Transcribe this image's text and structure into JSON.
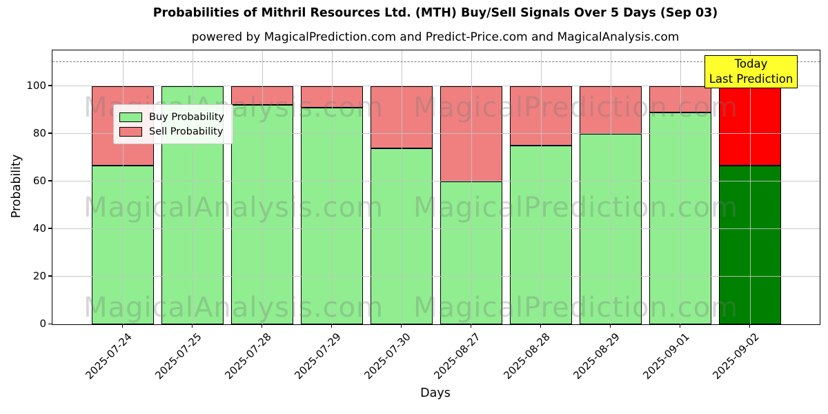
{
  "title": "Probabilities of Mithril Resources Ltd. (MTH) Buy/Sell Signals Over 5 Days (Sep 03)",
  "subtitle": "powered by MagicalPrediction.com and Predict-Price.com and MagicalAnalysis.com",
  "legend": {
    "items": [
      {
        "label": "Buy Probability",
        "color": "#90EE90"
      },
      {
        "label": "Sell Probability",
        "color": "#F08080"
      }
    ]
  },
  "annotation": {
    "line1": "Today",
    "line2": "Last Prediction",
    "bg_color": "#FFFF2E",
    "border_color": "#000000"
  },
  "watermarks": {
    "left_text": "MagicalAnalysis.com",
    "right_text": "MagicalPrediction.com"
  },
  "chart_data": {
    "type": "bar",
    "stacked": true,
    "title": "Probabilities of Mithril Resources Ltd. (MTH) Buy/Sell Signals Over 5 Days (Sep 03)",
    "xlabel": "Days",
    "ylabel": "Probability",
    "categories": [
      "2025-07-24",
      "2025-07-25",
      "2025-07-28",
      "2025-07-29",
      "2025-07-30",
      "2025-08-27",
      "2025-08-28",
      "2025-08-29",
      "2025-09-01",
      "2025-09-02"
    ],
    "series": [
      {
        "name": "Buy Probability",
        "color": "#90EE90",
        "today_color": "#008000",
        "values": [
          66.7,
          100,
          92,
          91,
          74,
          60,
          75,
          80,
          89,
          66.7
        ]
      },
      {
        "name": "Sell Probability",
        "color": "#F08080",
        "today_color": "#FF0000",
        "values": [
          33.3,
          0,
          8,
          9,
          26,
          40,
          25,
          20,
          11,
          33.3
        ]
      }
    ],
    "today_index": 9,
    "ylim": [
      0,
      115
    ],
    "yticks": [
      0,
      20,
      40,
      60,
      80,
      100
    ],
    "dashed_guideline_y": 110,
    "grid": true,
    "legend_position": "upper left"
  },
  "colors": {
    "bar_edge": "#000000",
    "grid": "#bebebe",
    "dashed_line": "#7a7a7a",
    "background": "#ffffff"
  }
}
